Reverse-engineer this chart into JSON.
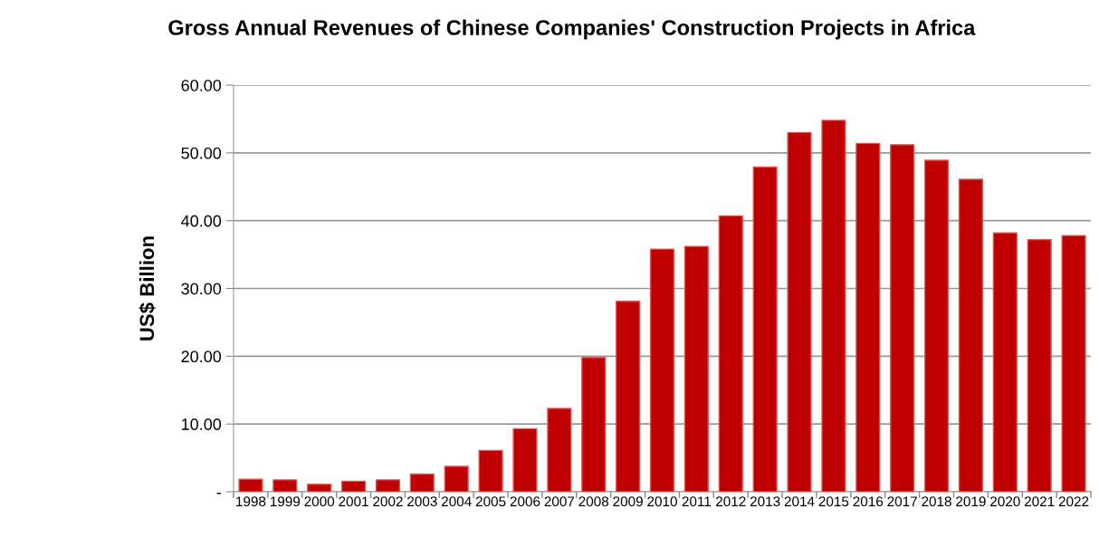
{
  "chart_data": {
    "type": "bar",
    "title": "Gross Annual Revenues of Chinese Companies' Construction Projects in Africa",
    "ylabel": "US$ Billion",
    "categories": [
      "1998",
      "1999",
      "2000",
      "2001",
      "2002",
      "2003",
      "2004",
      "2005",
      "2006",
      "2007",
      "2008",
      "2009",
      "2010",
      "2011",
      "2012",
      "2013",
      "2014",
      "2015",
      "2016",
      "2017",
      "2018",
      "2019",
      "2020",
      "2021",
      "2022"
    ],
    "values": [
      1.85,
      1.75,
      1.1,
      1.55,
      1.75,
      2.6,
      3.75,
      6.1,
      9.3,
      12.3,
      19.8,
      28.1,
      35.8,
      36.2,
      40.7,
      47.9,
      53.0,
      54.8,
      51.4,
      51.2,
      48.9,
      46.1,
      38.2,
      37.2,
      37.8
    ],
    "color": "#c00000",
    "ylim": [
      0,
      60
    ],
    "yticks": [
      {
        "value": 0,
        "label": "-"
      },
      {
        "value": 10,
        "label": "10.00"
      },
      {
        "value": 20,
        "label": "20.00"
      },
      {
        "value": 30,
        "label": "30.00"
      },
      {
        "value": 40,
        "label": "40.00"
      },
      {
        "value": 50,
        "label": "50.00"
      },
      {
        "value": 60,
        "label": "60.00"
      }
    ],
    "grid": "y"
  }
}
